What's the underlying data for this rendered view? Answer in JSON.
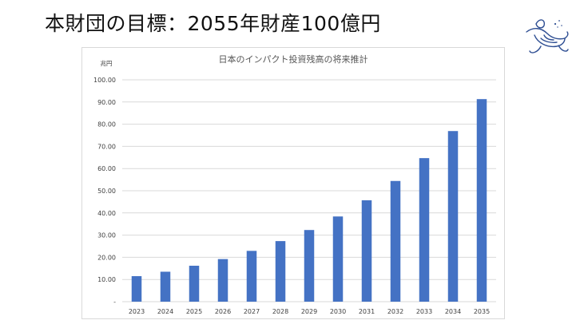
{
  "slide": {
    "title": "本財団の目標：2055年財産100億円"
  },
  "logo": {
    "icon": "sea-turtle-icon",
    "color": "#2f4f93"
  },
  "chart_data": {
    "type": "bar",
    "title": "日本のインパクト投資残高の将来推計",
    "ylabel": "兆円",
    "xlabel": "",
    "categories": [
      "2023",
      "2024",
      "2025",
      "2026",
      "2027",
      "2028",
      "2029",
      "2030",
      "2031",
      "2032",
      "2033",
      "2034",
      "2035"
    ],
    "values": [
      11.5,
      13.5,
      16.2,
      19.2,
      22.9,
      27.3,
      32.3,
      38.4,
      45.7,
      54.4,
      64.7,
      76.9,
      91.3
    ],
    "ylim": [
      0,
      100
    ],
    "yticks": [
      "-",
      "10.00",
      "20.00",
      "30.00",
      "40.00",
      "50.00",
      "60.00",
      "70.00",
      "80.00",
      "90.00",
      "100.00"
    ],
    "grid": true,
    "bar_color": "#4472c4",
    "grid_color": "#d9d9d9"
  }
}
